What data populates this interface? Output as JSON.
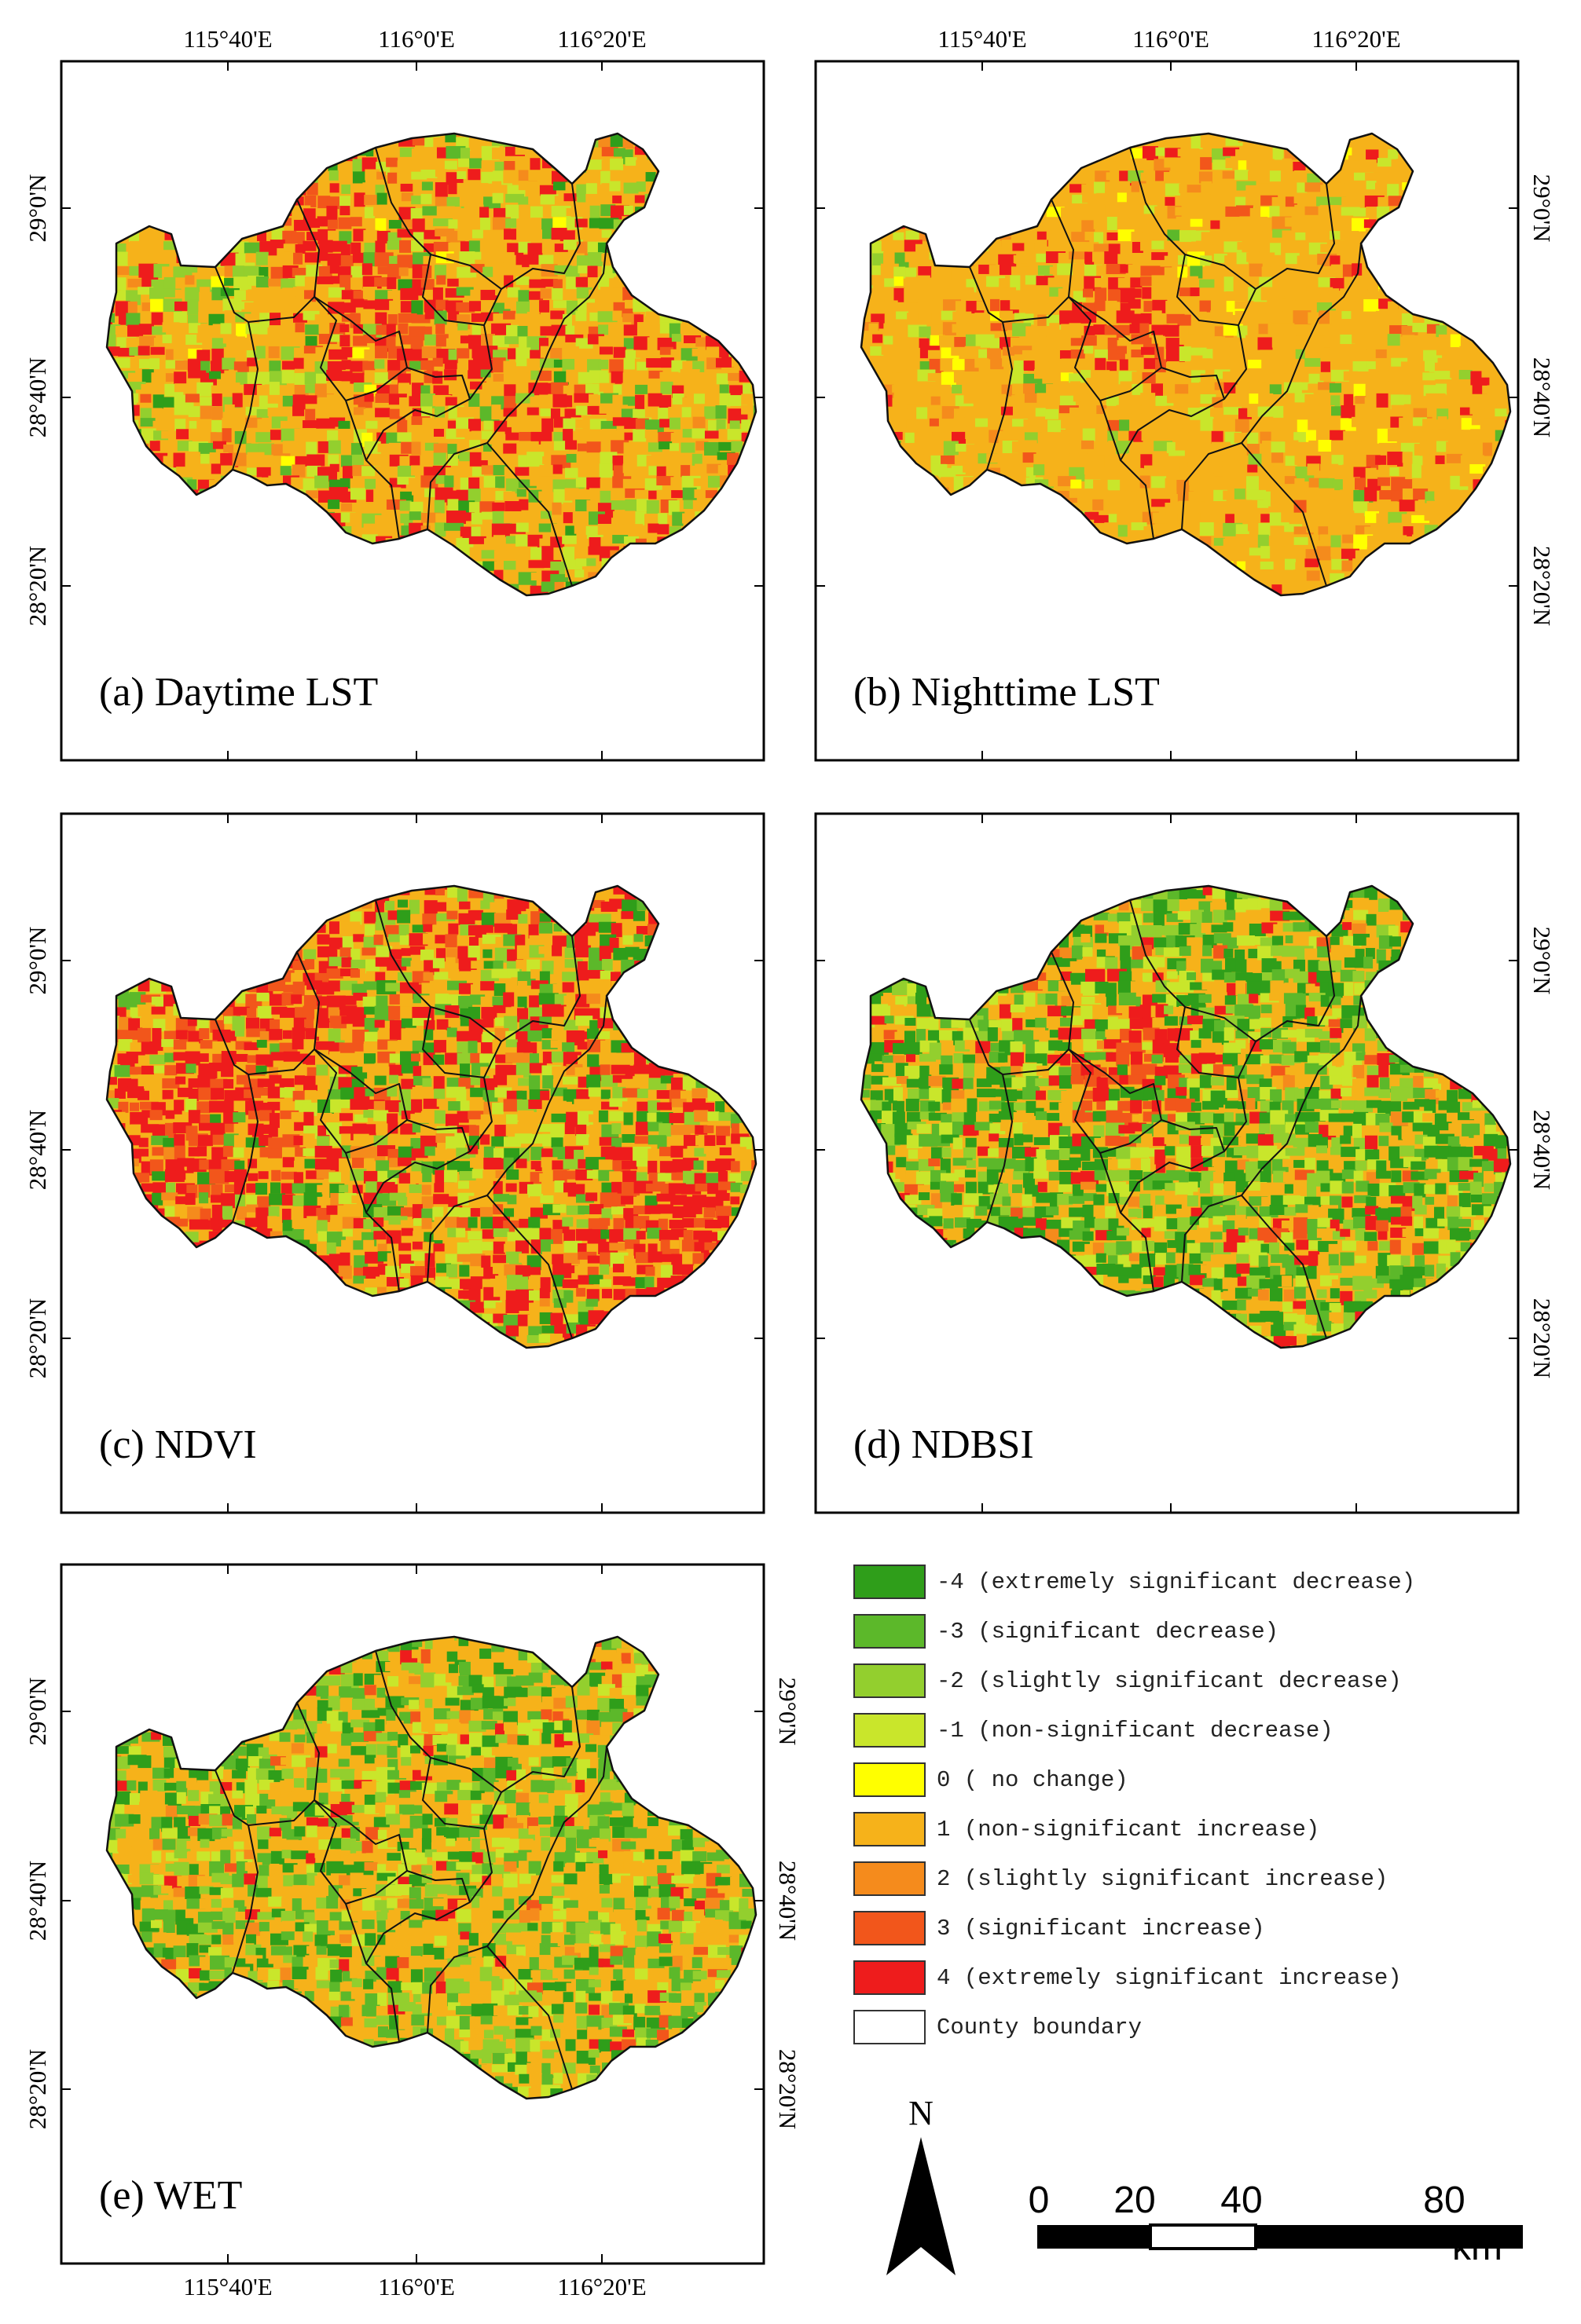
{
  "panels": [
    {
      "id": "a",
      "title": "(a) Daytime LST",
      "top_labels": true,
      "right_labels": false,
      "left_labels": true,
      "bottom_labels": false,
      "weights": [
        0.03,
        0.06,
        0.1,
        0.16,
        0.01,
        0.4,
        0.04,
        0.03,
        0.17
      ],
      "hot": "center"
    },
    {
      "id": "b",
      "title": "(b) Nighttime LST",
      "top_labels": true,
      "right_labels": true,
      "left_labels": false,
      "bottom_labels": false,
      "weights": [
        0.0,
        0.01,
        0.04,
        0.13,
        0.03,
        0.68,
        0.04,
        0.02,
        0.05
      ],
      "hot": "center-small"
    },
    {
      "id": "c",
      "title": "(c) NDVI",
      "top_labels": false,
      "right_labels": false,
      "left_labels": true,
      "bottom_labels": false,
      "weights": [
        0.08,
        0.08,
        0.1,
        0.12,
        0.0,
        0.22,
        0.04,
        0.06,
        0.3
      ],
      "hot": "west-southeast"
    },
    {
      "id": "d",
      "title": "(d) NDBSI",
      "top_labels": false,
      "right_labels": true,
      "left_labels": false,
      "bottom_labels": false,
      "weights": [
        0.28,
        0.16,
        0.14,
        0.14,
        0.0,
        0.18,
        0.02,
        0.02,
        0.06
      ],
      "hot": "center-small"
    },
    {
      "id": "e",
      "title": "(e) WET",
      "top_labels": false,
      "right_labels": true,
      "left_labels": true,
      "bottom_labels": true,
      "weights": [
        0.14,
        0.18,
        0.14,
        0.1,
        0.0,
        0.34,
        0.03,
        0.03,
        0.04
      ],
      "hot": "none"
    }
  ],
  "axis_labels": {
    "longitude": [
      "115°40'E",
      "116°0'E",
      "116°20'E"
    ],
    "latitude": [
      "29°0'N",
      "28°40'N",
      "28°20'N"
    ]
  },
  "legend": {
    "items": [
      {
        "label": "-4 (extremely significant decrease)",
        "color": "#2f9e1a"
      },
      {
        "label": "-3 (significant decrease)",
        "color": "#5cb82a"
      },
      {
        "label": "-2 (slightly significant decrease)",
        "color": "#93cf2e"
      },
      {
        "label": "-1 (non-significant decrease)",
        "color": "#c9e62b"
      },
      {
        "label": "0 ( no change)",
        "color": "#ffff00"
      },
      {
        "label": "1 (non-significant increase)",
        "color": "#f6b21a"
      },
      {
        "label": "2 (slightly significant increase)",
        "color": "#f58b1c"
      },
      {
        "label": "3 (significant increase)",
        "color": "#f2561b"
      },
      {
        "label": "4 (extremely significant increase)",
        "color": "#ee1c1c"
      }
    ],
    "boundary_label": "County boundary"
  },
  "north_label": "N",
  "scale": {
    "ticks": [
      "0",
      "20",
      "40",
      "80"
    ],
    "unit": "km"
  }
}
